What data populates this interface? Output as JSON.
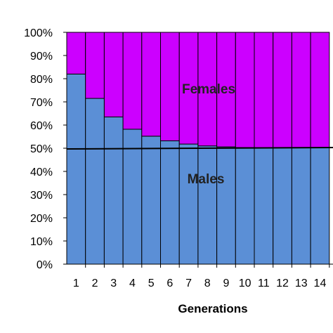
{
  "chart_data": {
    "type": "bar",
    "stacked": true,
    "percent_stacked": true,
    "categories": [
      "1",
      "2",
      "3",
      "4",
      "5",
      "6",
      "7",
      "8",
      "9",
      "10",
      "11",
      "12",
      "13",
      "14"
    ],
    "series": [
      {
        "name": "Males",
        "color": "#5b8fd6",
        "values": [
          82,
          71.5,
          63.5,
          58.2,
          55.2,
          53.2,
          51.8,
          51.0,
          50.6,
          50.3,
          50.2,
          50.2,
          50.2,
          50.2
        ]
      },
      {
        "name": "Females",
        "color": "#cc00ff",
        "values": [
          18,
          28.5,
          36.5,
          41.8,
          44.8,
          46.8,
          48.2,
          49.0,
          49.4,
          49.7,
          49.8,
          49.8,
          49.8,
          49.8
        ]
      }
    ],
    "reference_line": {
      "y": 50,
      "color": "#000000"
    },
    "xlabel": "Generations",
    "ylabel": "",
    "ylim": [
      0,
      100
    ],
    "yticks": [
      "0%",
      "10%",
      "20%",
      "30%",
      "40%",
      "50%",
      "60%",
      "70%",
      "80%",
      "90%",
      "100%"
    ],
    "grid": false,
    "legend": "none"
  }
}
